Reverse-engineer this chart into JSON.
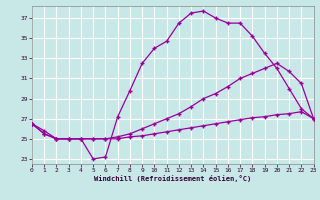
{
  "xlabel": "Windchill (Refroidissement éolien,°C)",
  "background_color": "#c8e8e8",
  "grid_color": "#b0d8d8",
  "line_color": "#990099",
  "xlim": [
    0,
    23
  ],
  "ylim": [
    22.5,
    38.2
  ],
  "xticks": [
    0,
    1,
    2,
    3,
    4,
    5,
    6,
    7,
    8,
    9,
    10,
    11,
    12,
    13,
    14,
    15,
    16,
    17,
    18,
    19,
    20,
    21,
    22,
    23
  ],
  "yticks": [
    23,
    25,
    27,
    29,
    31,
    33,
    35,
    37
  ],
  "line1_x": [
    0,
    1,
    2,
    3,
    4,
    5,
    6,
    7,
    8,
    9,
    10,
    11,
    12,
    13,
    14,
    15,
    16,
    17,
    18,
    19,
    20,
    21,
    22,
    23
  ],
  "line1_y": [
    26.5,
    25.8,
    25.0,
    25.0,
    25.0,
    23.0,
    23.2,
    27.2,
    29.8,
    32.5,
    34.0,
    34.7,
    36.5,
    37.5,
    37.7,
    37.0,
    36.5,
    36.5,
    35.2,
    33.5,
    32.0,
    30.0,
    28.0,
    27.0
  ],
  "line2_x": [
    0,
    1,
    2,
    3,
    4,
    5,
    6,
    7,
    8,
    9,
    10,
    11,
    12,
    13,
    14,
    15,
    16,
    17,
    18,
    19,
    20,
    21,
    22,
    23
  ],
  "line2_y": [
    26.5,
    25.5,
    25.0,
    25.0,
    25.0,
    25.0,
    25.0,
    25.2,
    25.5,
    26.0,
    26.5,
    27.0,
    27.5,
    28.2,
    29.0,
    29.5,
    30.2,
    31.0,
    31.5,
    32.0,
    32.5,
    31.7,
    30.5,
    27.0
  ],
  "line3_x": [
    0,
    1,
    2,
    3,
    4,
    5,
    6,
    7,
    8,
    9,
    10,
    11,
    12,
    13,
    14,
    15,
    16,
    17,
    18,
    19,
    20,
    21,
    22,
    23
  ],
  "line3_y": [
    26.5,
    25.5,
    25.0,
    25.0,
    25.0,
    25.0,
    25.0,
    25.0,
    25.2,
    25.3,
    25.5,
    25.7,
    25.9,
    26.1,
    26.3,
    26.5,
    26.7,
    26.9,
    27.1,
    27.2,
    27.4,
    27.5,
    27.7,
    27.0
  ]
}
